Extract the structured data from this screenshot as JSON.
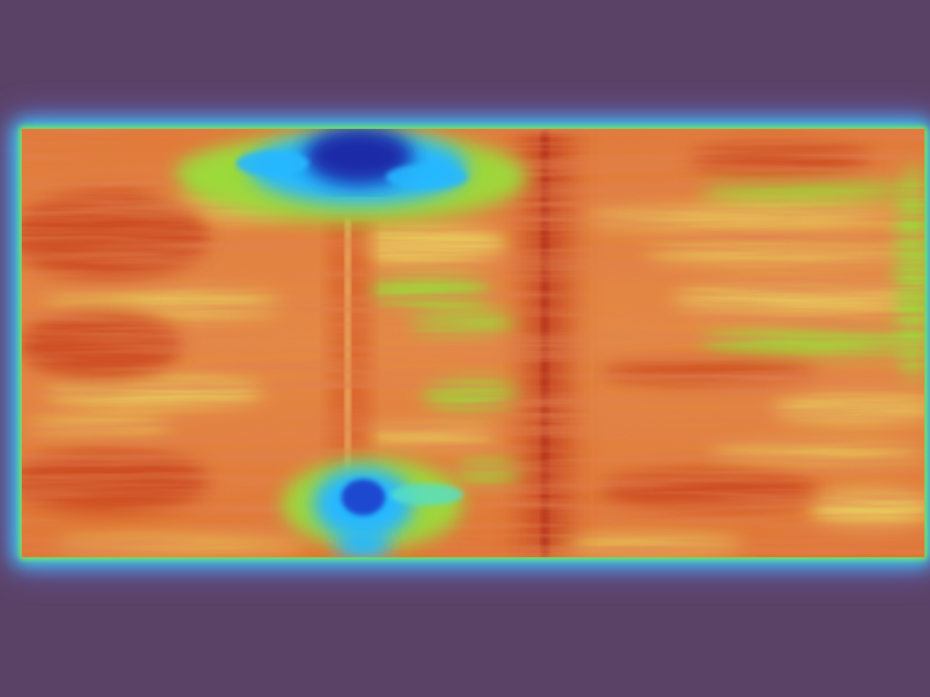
{
  "image": {
    "kind": "attention heatmap overlay on textured surface",
    "palette": {
      "background": "#5a4266",
      "glow_outer": "#6b6bd6",
      "glow_inner": "#2fe0ff",
      "edge_green": "#7be84a",
      "field_orange": "#e07a3a",
      "field_red": "#c9431f",
      "field_yellow": "#e9d260",
      "field_green": "#9bdb3a",
      "hot_blue": "#1a2aa8",
      "cyan": "#28b8ff"
    },
    "colormap": [
      "#1a2aa8",
      "#28b8ff",
      "#55e0c8",
      "#9bdb3a",
      "#e9d260",
      "#e07a3a",
      "#c9431f"
    ]
  }
}
